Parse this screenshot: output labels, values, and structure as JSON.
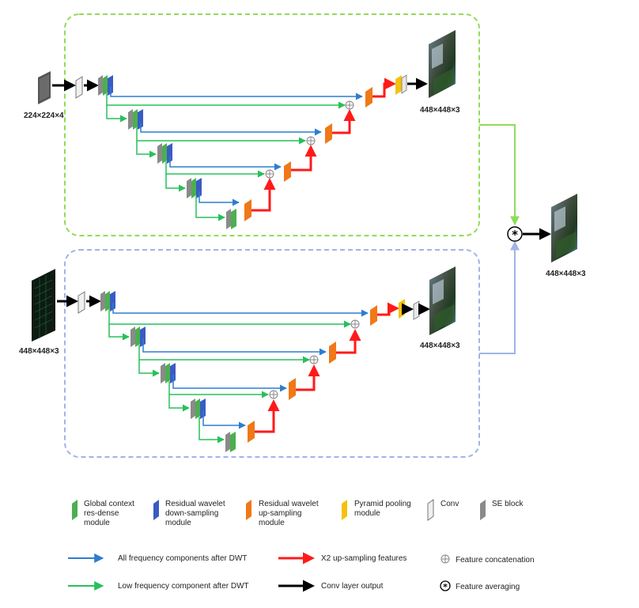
{
  "colors": {
    "green_block": "#4caf50",
    "blue_block": "#3a5bc4",
    "orange_block": "#f07818",
    "yellow_block": "#f4c20d",
    "gray_block": "#8a8a8a",
    "conv_block": "#f0f0f0",
    "top_frame": "#8fdc5a",
    "bottom_frame": "#9fb5e8",
    "blue_arrow": "#2e7dd1",
    "green_arrow": "#27c05a",
    "red_arrow": "#ff1a1a",
    "black_arrow": "#000000"
  },
  "top_branch": {
    "input_label": "224×224×4",
    "output_label": "448×448×3"
  },
  "bottom_branch": {
    "input_label": "448×448×3",
    "output_label": "448×448×3"
  },
  "final_output_label": "448×448×3",
  "legend": {
    "blocks": [
      {
        "label_lines": [
          "Global context",
          "res-dense",
          "module"
        ],
        "icon": "green-block-icon"
      },
      {
        "label_lines": [
          "Residual wavelet",
          "down-sampling",
          "module"
        ],
        "icon": "blue-block-icon"
      },
      {
        "label_lines": [
          "Residual wavelet",
          "up-sampling",
          "module"
        ],
        "icon": "orange-block-icon"
      },
      {
        "label_lines": [
          "Pyramid pooling",
          "module"
        ],
        "icon": "yellow-block-icon"
      },
      {
        "label_lines": [
          "Conv"
        ],
        "icon": "conv-block-icon"
      },
      {
        "label_lines": [
          "SE block"
        ],
        "icon": "se-block-icon"
      }
    ],
    "arrows": [
      {
        "label": "All frequency components after DWT",
        "icon": "blue-arrow-icon"
      },
      {
        "label": "X2 up-sampling features",
        "icon": "red-arrow-icon"
      },
      {
        "label": "Feature concatenation",
        "icon": "concat-circle-icon"
      },
      {
        "label": "Low frequency component after DWT",
        "icon": "green-arrow-icon"
      },
      {
        "label": "Conv layer output",
        "icon": "black-arrow-icon"
      },
      {
        "label": "Feature averaging",
        "icon": "average-circle-icon"
      }
    ]
  }
}
